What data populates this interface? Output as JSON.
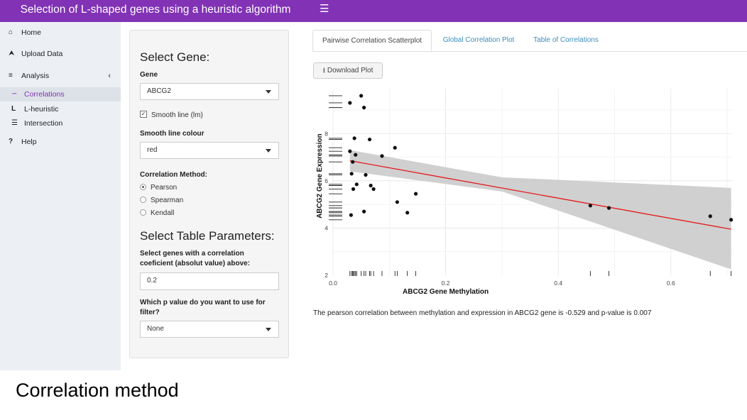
{
  "header": {
    "title": "Selection of L-shaped genes using a heuristic algorithm",
    "toggle_icon": "hamburger-icon"
  },
  "sidebar": {
    "items": [
      {
        "icon": "home-icon",
        "label": "Home"
      },
      {
        "icon": "upload-icon",
        "label": "Upload Data"
      },
      {
        "icon": "sliders-icon",
        "label": "Analysis"
      },
      {
        "icon": "line-chart-icon",
        "label": "Correlations"
      },
      {
        "icon": "l-shape-icon",
        "label": "L-heuristic"
      },
      {
        "icon": "layers-icon",
        "label": "Intersection"
      },
      {
        "icon": "question-icon",
        "label": "Help"
      }
    ]
  },
  "panel": {
    "select_gene_title": "Select Gene:",
    "gene_label": "Gene",
    "gene_value": "ABCG2",
    "smooth_label": "Smooth line (lm)",
    "smooth_checked": true,
    "colour_label": "Smooth line colour",
    "colour_value": "red",
    "method_label": "Correlation Method:",
    "methods": [
      "Pearson",
      "Spearman",
      "Kendall"
    ],
    "method_selected": "Pearson",
    "table_title": "Select Table Parameters:",
    "threshold_label": "Select genes with a correlation coeficient (absolut value) above:",
    "threshold_value": "0.2",
    "pvalue_label": "Which p value do you want to use for filter?",
    "pvalue_value": "None"
  },
  "tabs": [
    "Pairwise Correlation Scatterplot",
    "Global Correlation Plot",
    "Table of Correlations"
  ],
  "active_tab": 0,
  "download_label": "Download Plot",
  "chart_data": {
    "type": "scatter",
    "title": "",
    "xlabel": "ABCG2 Gene Methylation",
    "ylabel": "ABCG2 Gene Expression",
    "xlim": [
      0.0,
      0.71
    ],
    "ylim": [
      2,
      9.9
    ],
    "xticks": [
      "0.0",
      "0.2",
      "0.4",
      "0.6"
    ],
    "xtick_values": [
      0.0,
      0.2,
      0.4,
      0.6
    ],
    "yticks": [
      "2",
      "4",
      "6",
      "8"
    ],
    "ytick_values": [
      2,
      4,
      6,
      8
    ],
    "points": [
      {
        "x": 0.05,
        "y": 9.6
      },
      {
        "x": 0.03,
        "y": 9.3
      },
      {
        "x": 0.055,
        "y": 9.1
      },
      {
        "x": 0.038,
        "y": 7.8
      },
      {
        "x": 0.065,
        "y": 7.75
      },
      {
        "x": 0.11,
        "y": 7.4
      },
      {
        "x": 0.03,
        "y": 7.25
      },
      {
        "x": 0.04,
        "y": 7.1
      },
      {
        "x": 0.087,
        "y": 7.05
      },
      {
        "x": 0.035,
        "y": 6.8
      },
      {
        "x": 0.033,
        "y": 6.3
      },
      {
        "x": 0.058,
        "y": 6.25
      },
      {
        "x": 0.042,
        "y": 5.85
      },
      {
        "x": 0.067,
        "y": 5.8
      },
      {
        "x": 0.072,
        "y": 5.65
      },
      {
        "x": 0.036,
        "y": 5.65
      },
      {
        "x": 0.147,
        "y": 5.45
      },
      {
        "x": 0.114,
        "y": 5.1
      },
      {
        "x": 0.055,
        "y": 4.7
      },
      {
        "x": 0.032,
        "y": 4.55
      },
      {
        "x": 0.132,
        "y": 4.65
      },
      {
        "x": 0.457,
        "y": 4.95
      },
      {
        "x": 0.49,
        "y": 4.85
      },
      {
        "x": 0.67,
        "y": 4.5
      },
      {
        "x": 0.707,
        "y": 4.35
      }
    ],
    "fit": {
      "x0": 0.03,
      "y0": 6.85,
      "x1": 0.707,
      "y1": 3.95,
      "color": "#e41a1c"
    },
    "ci": {
      "upper": [
        [
          0.03,
          7.3
        ],
        [
          0.3,
          6.15
        ],
        [
          0.707,
          5.7
        ]
      ],
      "lower": [
        [
          0.03,
          6.4
        ],
        [
          0.3,
          5.55
        ],
        [
          0.707,
          2.25
        ]
      ]
    },
    "rug_x": [
      0.03,
      0.033,
      0.035,
      0.036,
      0.038,
      0.04,
      0.042,
      0.05,
      0.055,
      0.058,
      0.065,
      0.067,
      0.072,
      0.087,
      0.11,
      0.114,
      0.132,
      0.147,
      0.457,
      0.49,
      0.67,
      0.707
    ],
    "rug_y": [
      9.6,
      9.3,
      9.1,
      7.8,
      7.75,
      7.4,
      7.25,
      7.1,
      7.05,
      6.8,
      6.3,
      6.25,
      5.85,
      5.8,
      5.65,
      5.45,
      5.1,
      4.95,
      4.85,
      4.7,
      4.65,
      4.55,
      4.5,
      4.35
    ]
  },
  "correlation_text": "The pearson correlation between methylation and expression in ABCG2 gene is -0.529 and p-value is 0.007",
  "caption": "Correlation method"
}
